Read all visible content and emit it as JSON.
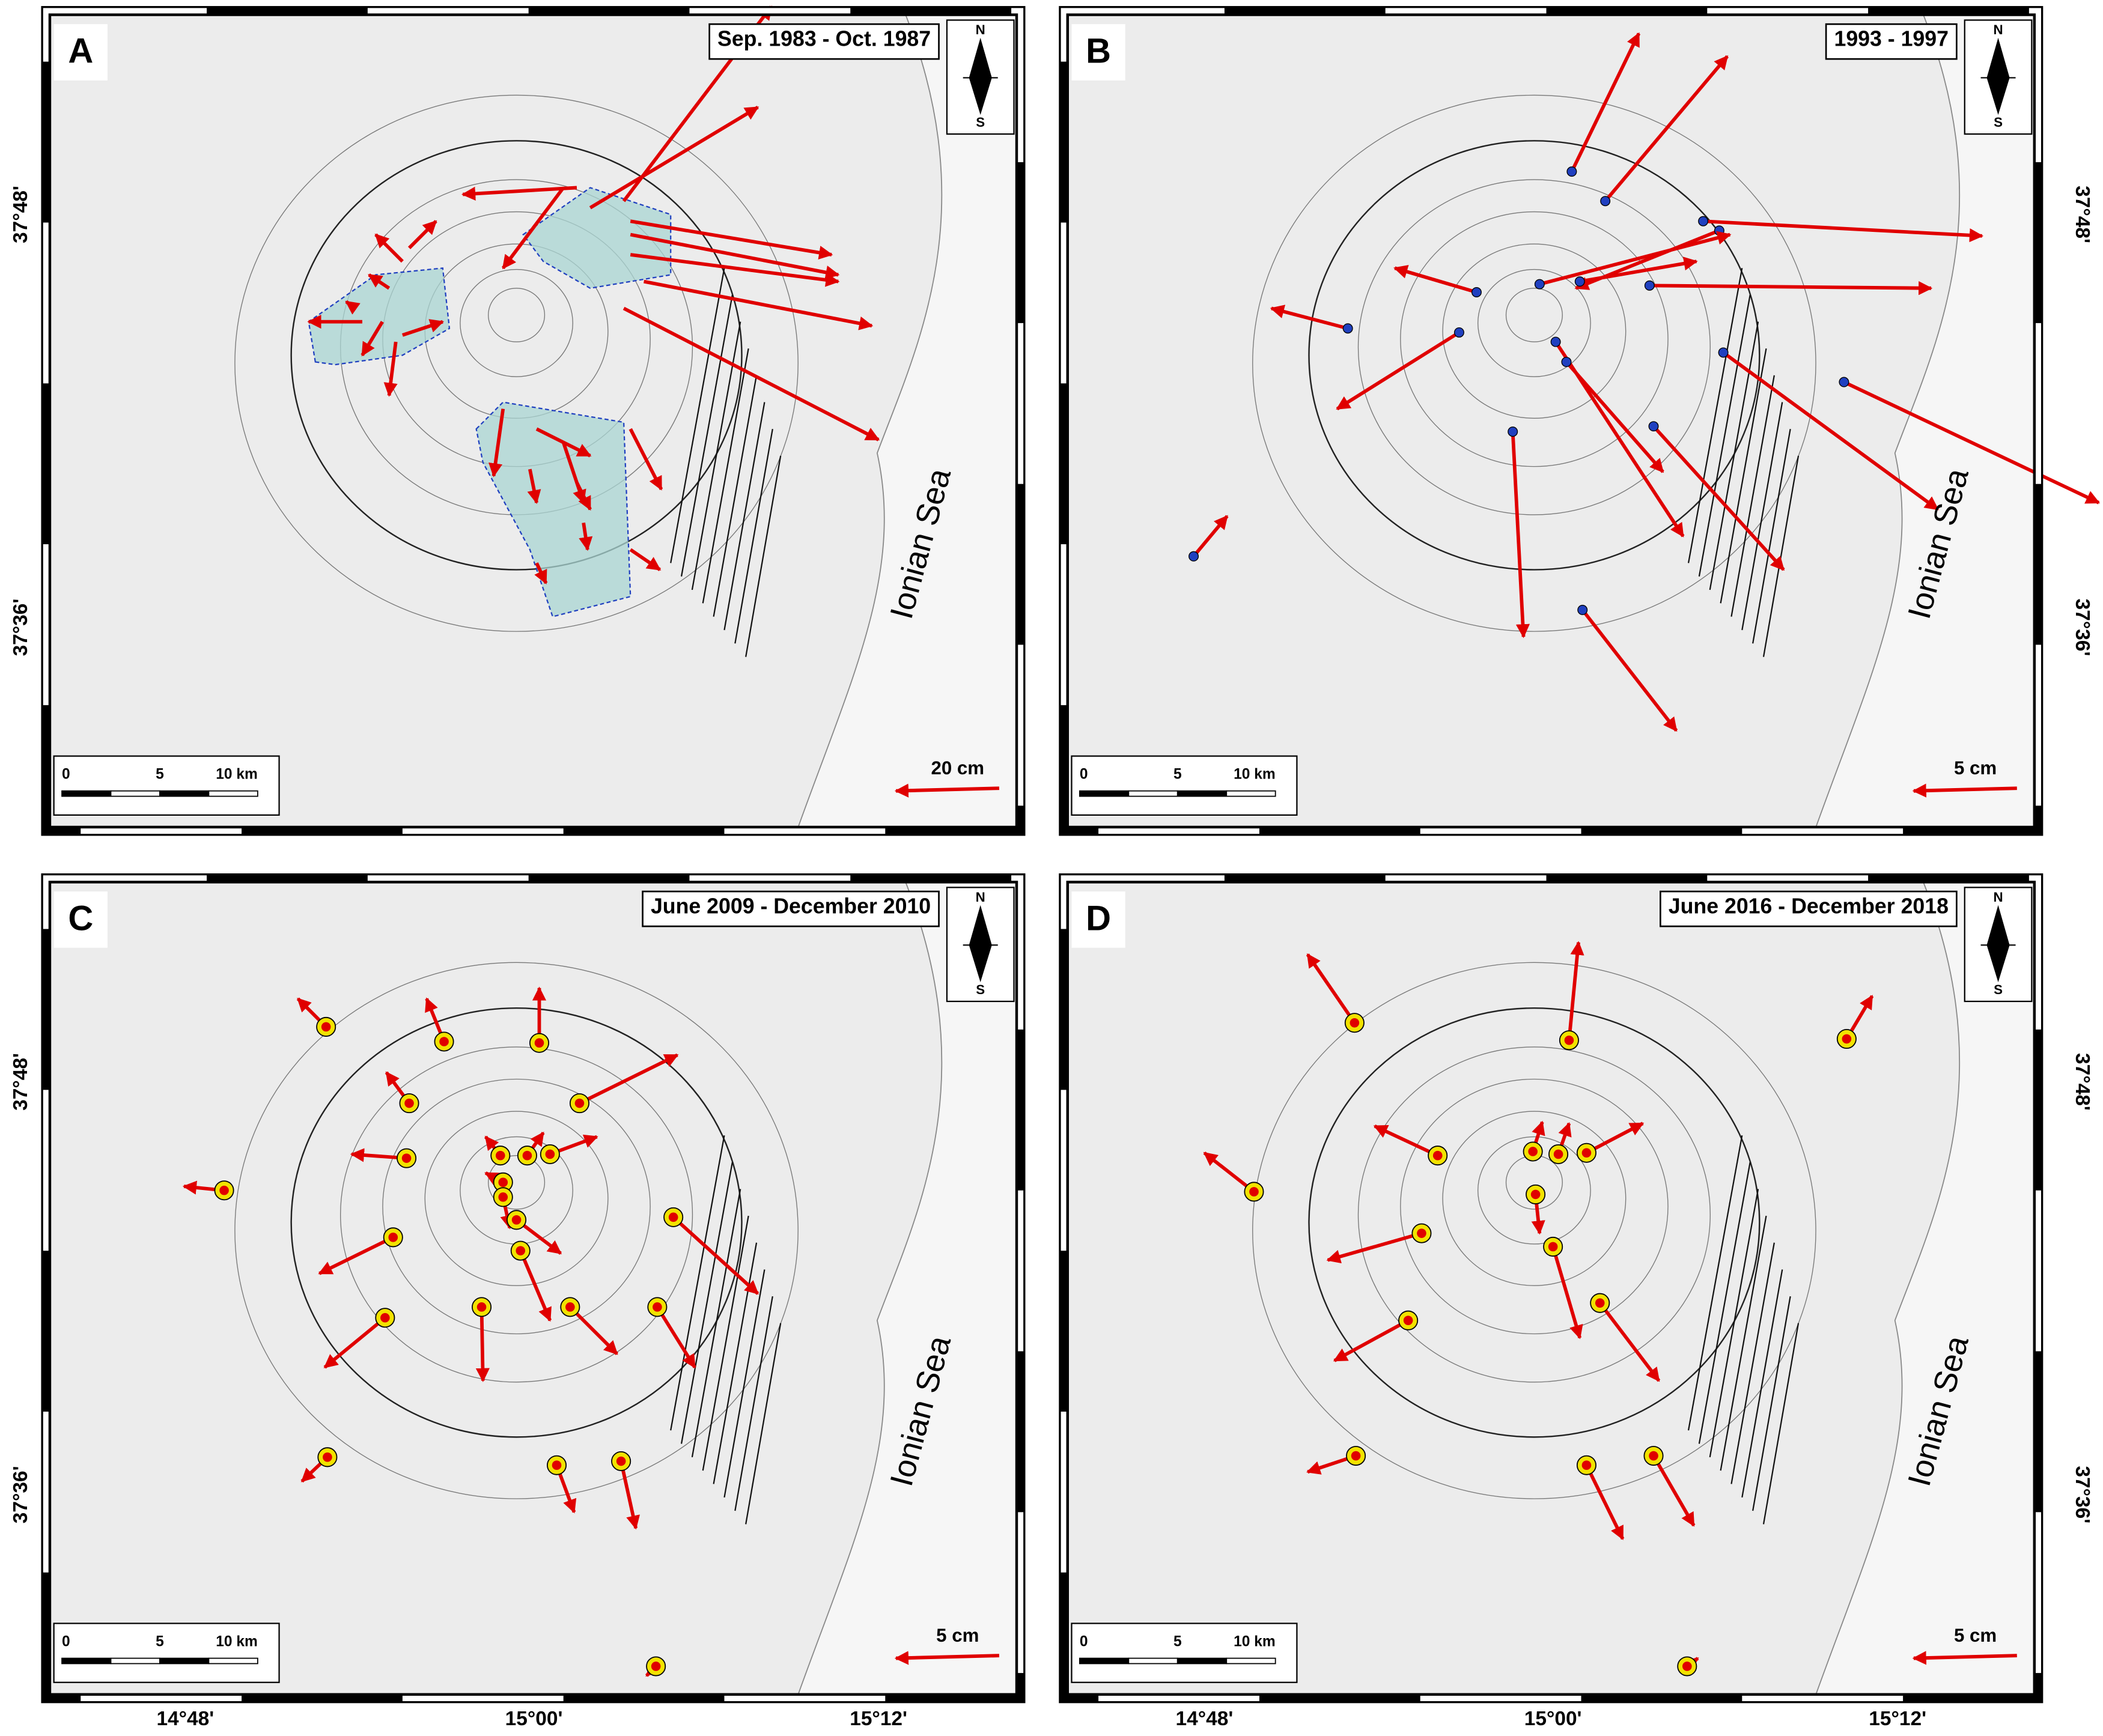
{
  "panels": [
    {
      "letter": "A",
      "period": "Sep. 1983 - Oct. 1987",
      "vector_scale": "20 cm",
      "sea_label": "Ionian Sea",
      "north": "N",
      "south": "S",
      "scale_bar": [
        "0",
        "5",
        "10 km"
      ]
    },
    {
      "letter": "B",
      "period": "1993 - 1997",
      "vector_scale": "5 cm",
      "sea_label": "Ionian Sea",
      "north": "N",
      "south": "S",
      "scale_bar": [
        "0",
        "5",
        "10 km"
      ]
    },
    {
      "letter": "C",
      "period": "June 2009 - December 2010",
      "vector_scale": "5 cm",
      "sea_label": "Ionian Sea",
      "north": "N",
      "south": "S",
      "scale_bar": [
        "0",
        "5",
        "10 km"
      ]
    },
    {
      "letter": "D",
      "period": "June 2016 - December 2018",
      "vector_scale": "5 cm",
      "sea_label": "Ionian Sea",
      "north": "N",
      "south": "S",
      "scale_bar": [
        "0",
        "5",
        "10 km"
      ]
    }
  ],
  "axes": {
    "latitude_labels": [
      "37°48'",
      "37°36'"
    ],
    "longitude_labels": [
      "14°48'",
      "15°00'",
      "15°12'"
    ]
  }
}
